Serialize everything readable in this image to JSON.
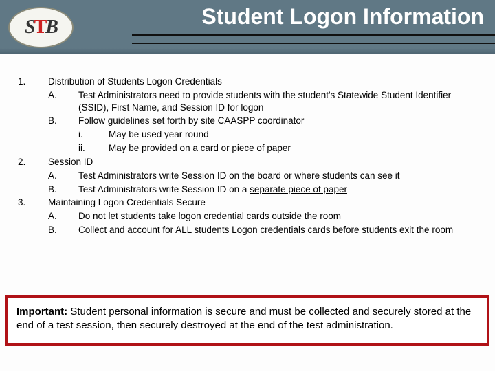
{
  "header": {
    "logo_letters": [
      "S",
      "T",
      "B"
    ],
    "title": "Student Logon Information"
  },
  "outline": {
    "items": [
      {
        "num": "1.",
        "text": "Distribution of Students Logon Credentials",
        "sub": [
          {
            "letter": "A.",
            "text": "Test Administrators need to provide students with the student's Statewide Student Identifier (SSID), First Name, and Session ID for logon"
          },
          {
            "letter": "B.",
            "text": "Follow guidelines set forth by site CAASPP coordinator",
            "roman": [
              {
                "r": "i.",
                "text": "May be used year round"
              },
              {
                "r": "ii.",
                "text": "May be provided on a card or piece of paper"
              }
            ]
          }
        ]
      },
      {
        "num": "2.",
        "text": "Session ID",
        "sub": [
          {
            "letter": "A.",
            "text": "Test Administrators write Session ID on the board or where students can see it"
          },
          {
            "letter": "B.",
            "text_pre": "Test Administrators write Session ID on a ",
            "underline": "separate piece of paper"
          }
        ]
      },
      {
        "num": "3.",
        "text": "Maintaining Logon Credentials Secure",
        "sub": [
          {
            "letter": "A.",
            "text": "Do not let students take logon credential cards outside the room"
          },
          {
            "letter": "B.",
            "text": "Collect and account for ALL students Logon credentials cards before students exit the room"
          }
        ]
      }
    ]
  },
  "callout": {
    "label": "Important:",
    "text": " Student personal information is secure and must be collected and securely stored at the end of a test session, then securely destroyed at the end of the test administration."
  },
  "style": {
    "band_color": "#607885",
    "callout_border": "#b01217",
    "body_fontsize": 13.5,
    "title_fontsize": 32,
    "callout_fontsize": 15
  }
}
